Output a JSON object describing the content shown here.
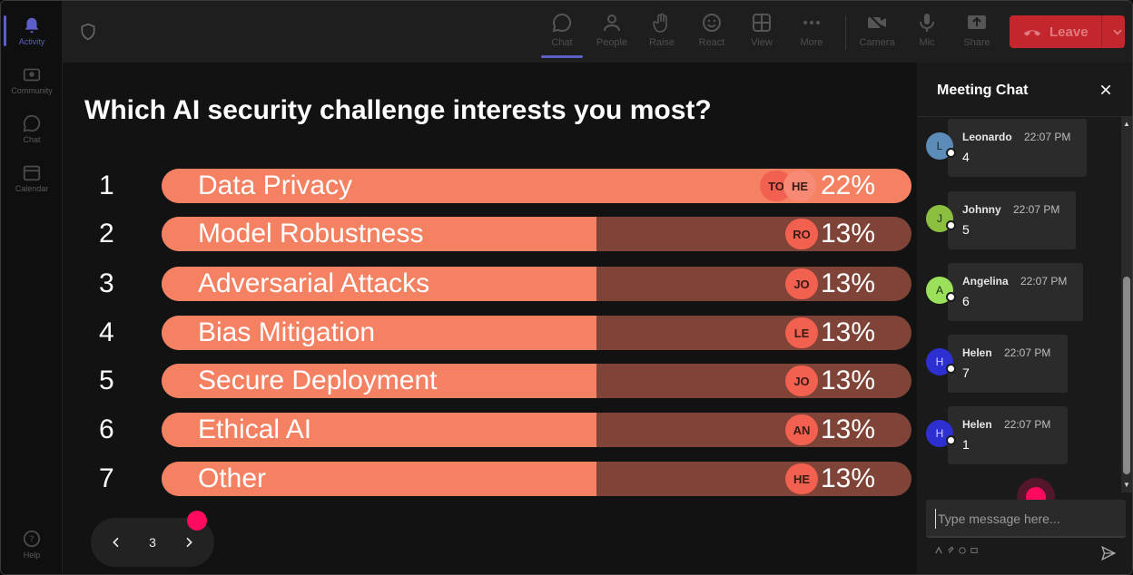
{
  "rail": {
    "items": [
      {
        "label": "Activity",
        "icon": "bell-icon",
        "active": true
      },
      {
        "label": "Community",
        "icon": "community-icon",
        "active": false
      },
      {
        "label": "Chat",
        "icon": "chat-icon",
        "active": false
      },
      {
        "label": "Calendar",
        "icon": "calendar-icon",
        "active": false
      }
    ],
    "help_label": "Help"
  },
  "toolbar": {
    "buttons": [
      {
        "label": "Chat",
        "icon": "chat-icon",
        "active": true
      },
      {
        "label": "People",
        "icon": "people-icon"
      },
      {
        "label": "Raise",
        "icon": "hand-icon"
      },
      {
        "label": "React",
        "icon": "smile-icon"
      },
      {
        "label": "View",
        "icon": "grid-icon"
      },
      {
        "label": "More",
        "icon": "more-icon"
      },
      {
        "label": "Camera",
        "icon": "camera-off-icon"
      },
      {
        "label": "Mic",
        "icon": "mic-icon"
      },
      {
        "label": "Share",
        "icon": "share-icon"
      }
    ],
    "leave_label": "Leave"
  },
  "poll": {
    "question": "Which AI security challenge interests you most?",
    "options": [
      {
        "num": "1",
        "label": "Data Privacy",
        "percent_label": "22%",
        "percent": 22,
        "voters": [
          "TO",
          "HE"
        ]
      },
      {
        "num": "2",
        "label": "Model Robustness",
        "percent_label": "13%",
        "percent": 13,
        "voters": [
          "RO"
        ]
      },
      {
        "num": "3",
        "label": "Adversarial Attacks",
        "percent_label": "13%",
        "percent": 13,
        "voters": [
          "JO"
        ]
      },
      {
        "num": "4",
        "label": "Bias Mitigation",
        "percent_label": "13%",
        "percent": 13,
        "voters": [
          "LE"
        ]
      },
      {
        "num": "5",
        "label": "Secure Deployment",
        "percent_label": "13%",
        "percent": 13,
        "voters": [
          "JO"
        ]
      },
      {
        "num": "6",
        "label": "Ethical AI",
        "percent_label": "13%",
        "percent": 13,
        "voters": [
          "AN"
        ]
      },
      {
        "num": "7",
        "label": "Other",
        "percent_label": "13%",
        "percent": 13,
        "voters": [
          "HE"
        ]
      }
    ],
    "page": "3",
    "colors": {
      "fill": "#f58163",
      "track": "#7f4337",
      "voter": "#f2604f"
    }
  },
  "chat": {
    "title": "Meeting Chat",
    "messages": [
      {
        "initial": "L",
        "name": "Leonardo",
        "time": "22:07 PM",
        "text": "4",
        "color": "#5b8db8"
      },
      {
        "initial": "J",
        "name": "Johnny",
        "time": "22:07 PM",
        "text": "5",
        "color": "#8cbf3f"
      },
      {
        "initial": "A",
        "name": "Angelina",
        "time": "22:07 PM",
        "text": "6",
        "color": "#9be05a"
      },
      {
        "initial": "H",
        "name": "Helen",
        "time": "22:07 PM",
        "text": "7",
        "color": "#2e2fd0"
      },
      {
        "initial": "H",
        "name": "Helen",
        "time": "22:07 PM",
        "text": "1",
        "color": "#2e2fd0"
      }
    ],
    "compose_placeholder": "Type message here..."
  }
}
